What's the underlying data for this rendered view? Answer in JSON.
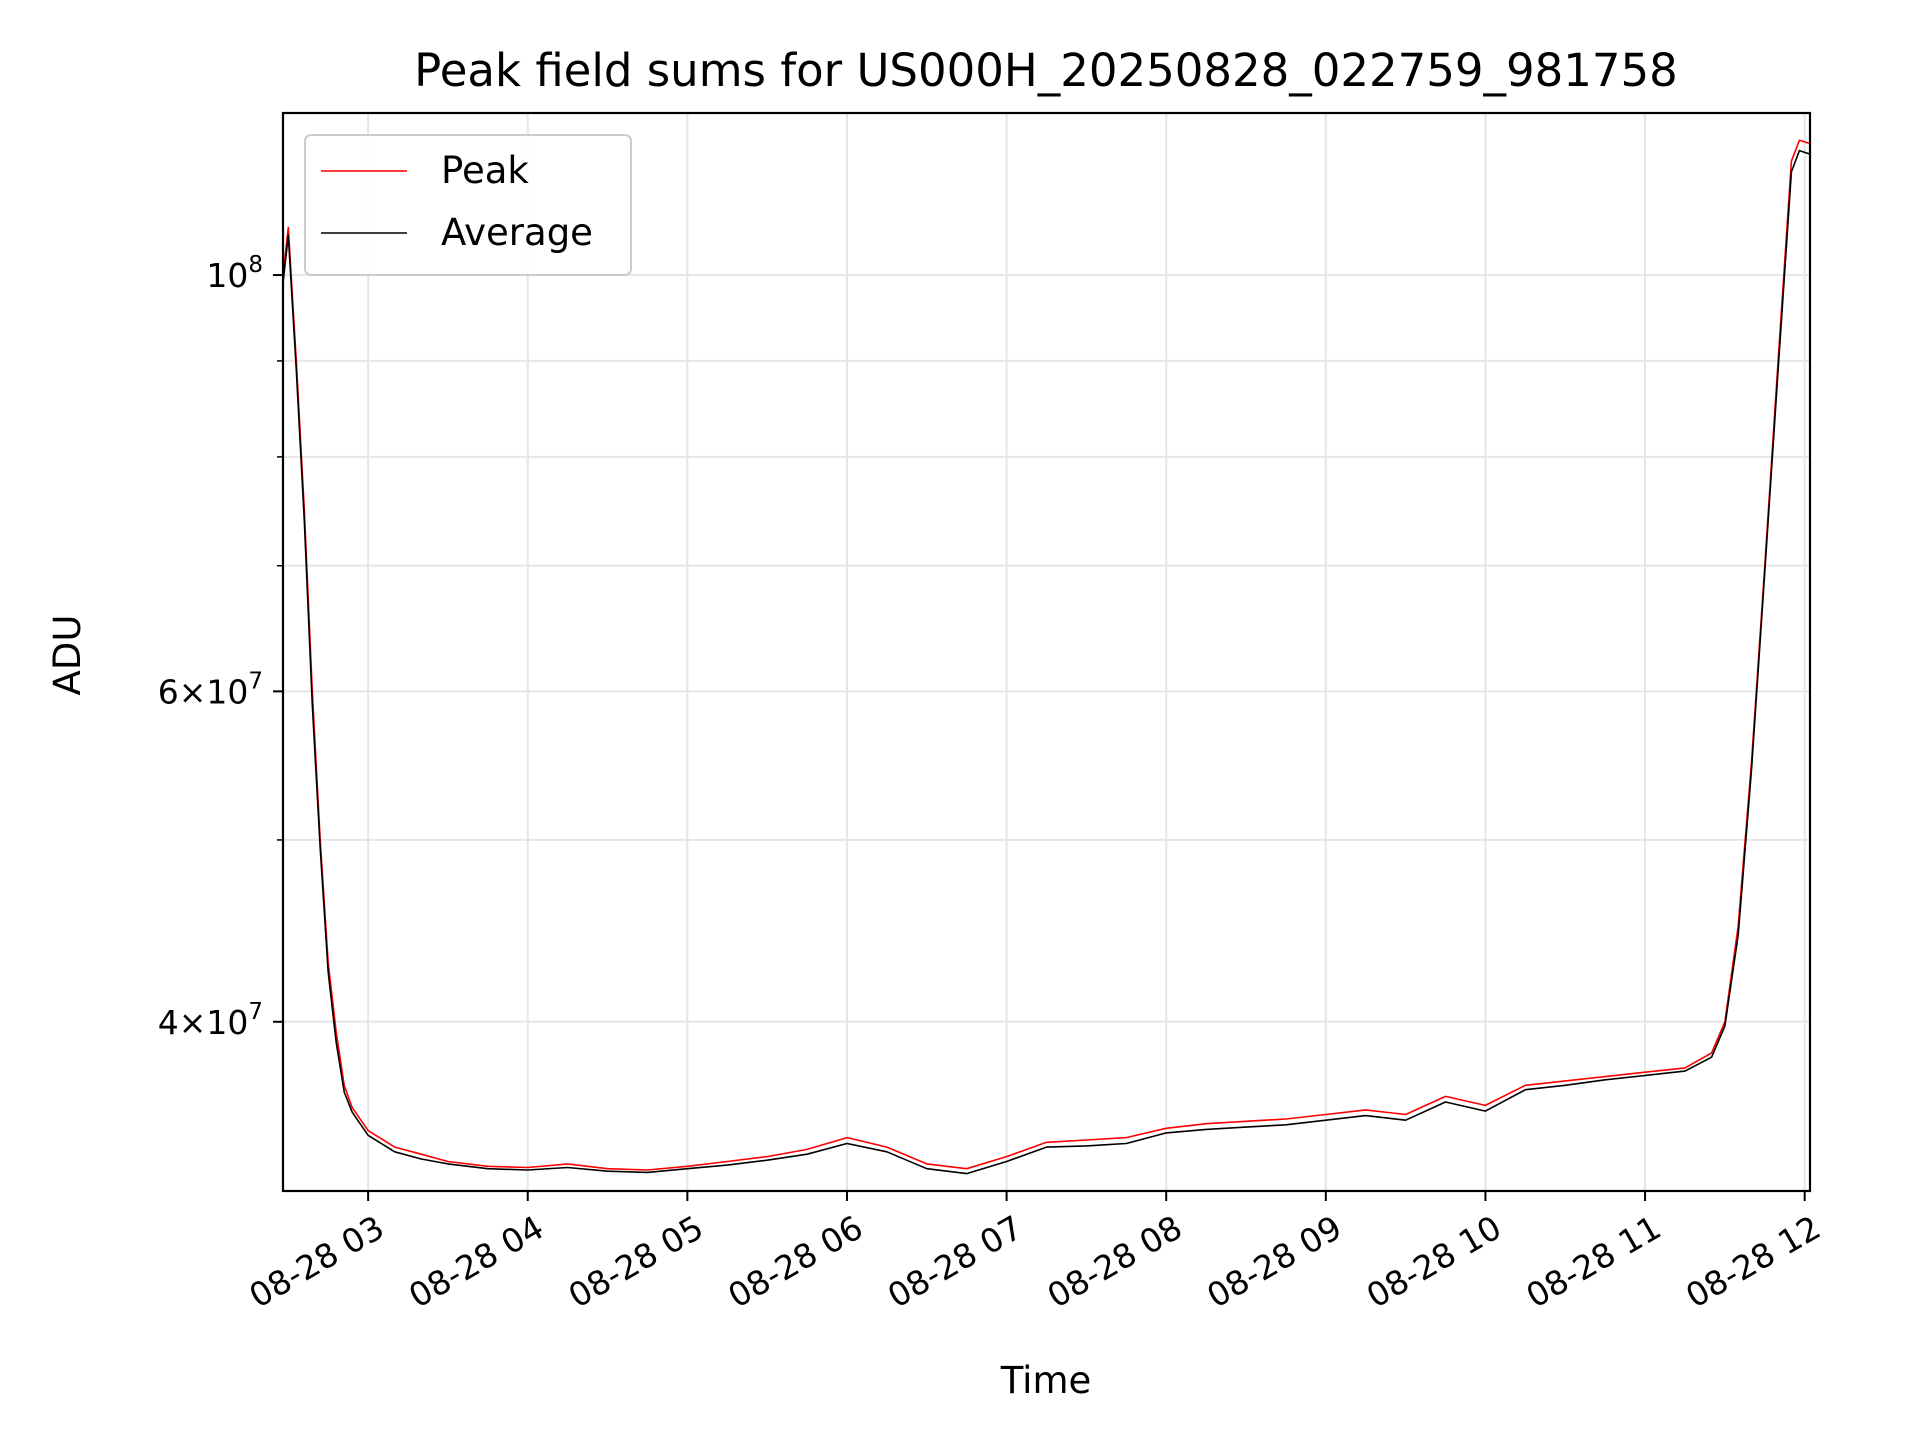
{
  "chart_data": {
    "type": "line",
    "title": "Peak field sums for US000H_20250828_022759_981758",
    "xlabel": "Time",
    "ylabel": "ADU",
    "y_scale": "log",
    "ylim": [
      32500000,
      122000000
    ],
    "xlim": [
      "2025-08-28 02:28",
      "2025-08-28 12:02"
    ],
    "grid": true,
    "legend_placement": "top-left",
    "x_ticks": [
      {
        "t": "2025-08-28 03:00",
        "label": "08-28 03"
      },
      {
        "t": "2025-08-28 04:00",
        "label": "08-28 04"
      },
      {
        "t": "2025-08-28 05:00",
        "label": "08-28 05"
      },
      {
        "t": "2025-08-28 06:00",
        "label": "08-28 06"
      },
      {
        "t": "2025-08-28 07:00",
        "label": "08-28 07"
      },
      {
        "t": "2025-08-28 08:00",
        "label": "08-28 08"
      },
      {
        "t": "2025-08-28 09:00",
        "label": "08-28 09"
      },
      {
        "t": "2025-08-28 10:00",
        "label": "08-28 10"
      },
      {
        "t": "2025-08-28 11:00",
        "label": "08-28 11"
      },
      {
        "t": "2025-08-28 12:00",
        "label": "08-28 12"
      }
    ],
    "y_major_ticks": [
      {
        "value": 40000000,
        "mantissa": "4",
        "exponent": "7"
      },
      {
        "value": 60000000,
        "mantissa": "6",
        "exponent": "7"
      },
      {
        "value": 100000000,
        "mantissa": "",
        "exponent": "8"
      }
    ],
    "y_minor_ticks": [
      50000000,
      70000000,
      80000000,
      90000000
    ],
    "series": [
      {
        "name": "Peak",
        "color": "#ff0000",
        "x": [
          "2025-08-28 02:28",
          "2025-08-28 02:30",
          "2025-08-28 02:33",
          "2025-08-28 02:36",
          "2025-08-28 02:39",
          "2025-08-28 02:42",
          "2025-08-28 02:45",
          "2025-08-28 02:48",
          "2025-08-28 02:51",
          "2025-08-28 02:54",
          "2025-08-28 03:00",
          "2025-08-28 03:10",
          "2025-08-28 03:20",
          "2025-08-28 03:30",
          "2025-08-28 03:45",
          "2025-08-28 04:00",
          "2025-08-28 04:15",
          "2025-08-28 04:30",
          "2025-08-28 04:45",
          "2025-08-28 05:00",
          "2025-08-28 05:15",
          "2025-08-28 05:30",
          "2025-08-28 05:45",
          "2025-08-28 06:00",
          "2025-08-28 06:15",
          "2025-08-28 06:30",
          "2025-08-28 06:45",
          "2025-08-28 07:00",
          "2025-08-28 07:15",
          "2025-08-28 07:30",
          "2025-08-28 07:45",
          "2025-08-28 08:00",
          "2025-08-28 08:15",
          "2025-08-28 08:30",
          "2025-08-28 08:45",
          "2025-08-28 09:00",
          "2025-08-28 09:15",
          "2025-08-28 09:30",
          "2025-08-28 09:45",
          "2025-08-28 10:00",
          "2025-08-28 10:15",
          "2025-08-28 10:30",
          "2025-08-28 10:45",
          "2025-08-28 11:00",
          "2025-08-28 11:15",
          "2025-08-28 11:25",
          "2025-08-28 11:30",
          "2025-08-28 11:35",
          "2025-08-28 11:40",
          "2025-08-28 11:45",
          "2025-08-28 11:50",
          "2025-08-28 11:55",
          "2025-08-28 11:58",
          "2025-08-28 12:02"
        ],
        "values": [
          100000000,
          106000000,
          90000000,
          75000000,
          60000000,
          50000000,
          43000000,
          39500000,
          37000000,
          36000000,
          35000000,
          34300000,
          34000000,
          33700000,
          33500000,
          33450000,
          33600000,
          33400000,
          33350000,
          33500000,
          33700000,
          33900000,
          34200000,
          34700000,
          34300000,
          33600000,
          33400000,
          33900000,
          34500000,
          34600000,
          34700000,
          35100000,
          35300000,
          35400000,
          35500000,
          35700000,
          35900000,
          35700000,
          36500000,
          36100000,
          37000000,
          37200000,
          37400000,
          37600000,
          37800000,
          38500000,
          40000000,
          45000000,
          55000000,
          70000000,
          90000000,
          115000000,
          118000000,
          117500000
        ]
      },
      {
        "name": "Average",
        "color": "#000000",
        "x": [
          "2025-08-28 02:28",
          "2025-08-28 02:30",
          "2025-08-28 02:33",
          "2025-08-28 02:36",
          "2025-08-28 02:39",
          "2025-08-28 02:42",
          "2025-08-28 02:45",
          "2025-08-28 02:48",
          "2025-08-28 02:51",
          "2025-08-28 02:54",
          "2025-08-28 03:00",
          "2025-08-28 03:10",
          "2025-08-28 03:20",
          "2025-08-28 03:30",
          "2025-08-28 03:45",
          "2025-08-28 04:00",
          "2025-08-28 04:15",
          "2025-08-28 04:30",
          "2025-08-28 04:45",
          "2025-08-28 05:00",
          "2025-08-28 05:15",
          "2025-08-28 05:30",
          "2025-08-28 05:45",
          "2025-08-28 06:00",
          "2025-08-28 06:15",
          "2025-08-28 06:30",
          "2025-08-28 06:45",
          "2025-08-28 07:00",
          "2025-08-28 07:15",
          "2025-08-28 07:30",
          "2025-08-28 07:45",
          "2025-08-28 08:00",
          "2025-08-28 08:15",
          "2025-08-28 08:30",
          "2025-08-28 08:45",
          "2025-08-28 09:00",
          "2025-08-28 09:15",
          "2025-08-28 09:30",
          "2025-08-28 09:45",
          "2025-08-28 10:00",
          "2025-08-28 10:15",
          "2025-08-28 10:30",
          "2025-08-28 10:45",
          "2025-08-28 11:00",
          "2025-08-28 11:15",
          "2025-08-28 11:25",
          "2025-08-28 11:30",
          "2025-08-28 11:35",
          "2025-08-28 11:40",
          "2025-08-28 11:45",
          "2025-08-28 11:50",
          "2025-08-28 11:55",
          "2025-08-28 11:58",
          "2025-08-28 12:02"
        ],
        "values": [
          99000000,
          105000000,
          89000000,
          74000000,
          59000000,
          49500000,
          42500000,
          39000000,
          36700000,
          35800000,
          34800000,
          34100000,
          33800000,
          33600000,
          33400000,
          33350000,
          33450000,
          33300000,
          33250000,
          33400000,
          33550000,
          33750000,
          34000000,
          34450000,
          34100000,
          33400000,
          33200000,
          33700000,
          34300000,
          34350000,
          34450000,
          34900000,
          35050000,
          35150000,
          35250000,
          35450000,
          35650000,
          35450000,
          36250000,
          35850000,
          36800000,
          37000000,
          37250000,
          37450000,
          37650000,
          38300000,
          39800000,
          44500000,
          54500000,
          69500000,
          89000000,
          113500000,
          116500000,
          116000000
        ]
      }
    ]
  }
}
